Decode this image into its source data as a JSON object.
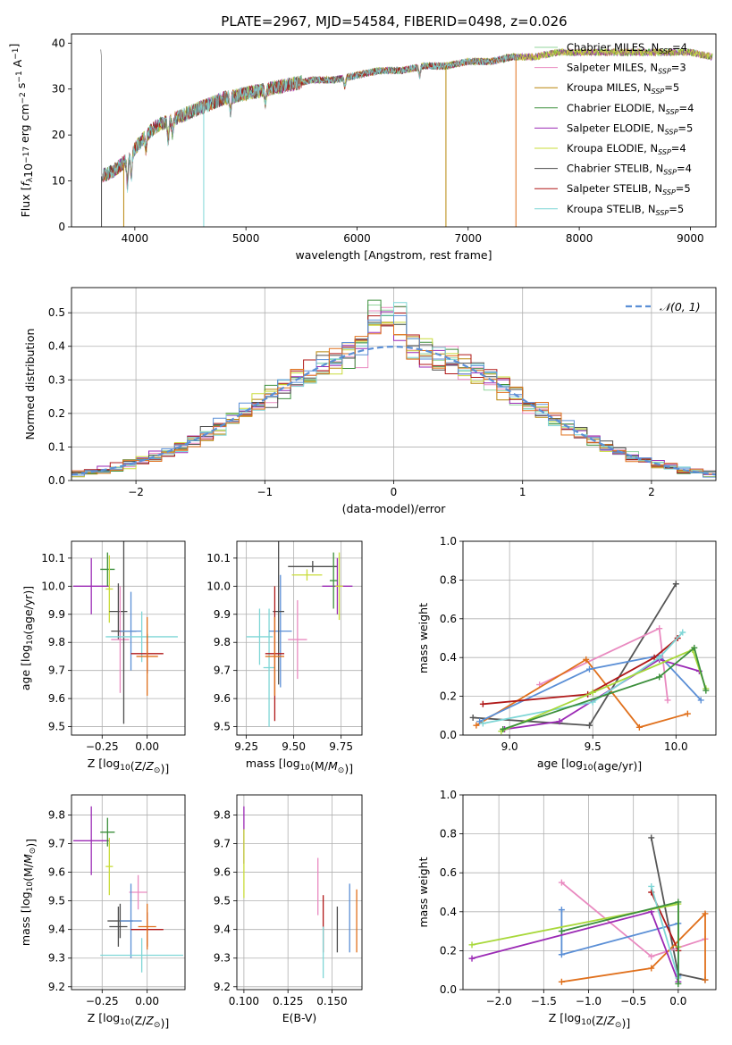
{
  "figure": {
    "title": "PLATE=2967, MJD=54584, FIBERID=0498, z=0.026"
  },
  "colors": {
    "Chabrier MILES": "#93d59d",
    "Salpeter MILES": "#e98ac0",
    "Kroupa MILES": "#b8860b",
    "Chabrier ELODIE": "#3c8f3c",
    "Salpeter ELODIE": "#9b2ab5",
    "Kroupa ELODIE": "#c9dc3a",
    "Chabrier STELIB": "#4d4d4d",
    "Salpeter STELIB": "#b01818",
    "Kroupa STELIB": "#7fd6d6",
    "dash": "#5b8fd6",
    "orange": "#e0701c",
    "blue": "#5b8fd6",
    "violet": "#9b2ab5",
    "lime": "#a8d83a",
    "yellow": "#d8e84a",
    "pink": "#e98ac0",
    "gray": "#555555",
    "grid": "#b0b0b0"
  },
  "chart_data": [
    {
      "id": "spectrum",
      "type": "line",
      "xlabel": "wavelength [Angstrom, rest frame]",
      "ylabel": "Flux [f_λ10^−17 erg cm^−2 s^−1 A^−1]",
      "xlim": [
        3430,
        9230
      ],
      "ylim": [
        0,
        42
      ],
      "xticks": [
        4000,
        5000,
        6000,
        7000,
        8000,
        9000
      ],
      "yticks": [
        0,
        10,
        20,
        30,
        40
      ],
      "grid": false,
      "legend_placement": "right",
      "continuum": {
        "x": [
          3700,
          3800,
          3900,
          4000,
          4100,
          4200,
          4400,
          4600,
          4800,
          5000,
          5200,
          5400,
          5600,
          5800,
          6000,
          6200,
          6400,
          6600,
          6800,
          7000,
          7200,
          7400,
          7600,
          7800,
          8000,
          8200,
          8400,
          8600,
          8800,
          9000,
          9200
        ],
        "y": [
          11,
          12,
          14,
          17,
          20,
          22,
          24,
          26,
          28,
          29,
          30,
          31,
          32,
          32,
          33,
          34,
          34,
          35,
          35,
          36,
          36,
          37,
          37,
          38,
          38,
          38,
          38,
          38,
          38,
          38,
          37
        ]
      },
      "series": [
        {
          "name": "Chabrier MILES, N_SSP=4",
          "label": "Chabrier MILES, N",
          "n": "4",
          "color_key": "Chabrier MILES"
        },
        {
          "name": "Salpeter MILES, N_SSP=3",
          "label": "Salpeter MILES, N",
          "n": "3",
          "color_key": "Salpeter MILES"
        },
        {
          "name": "Kroupa MILES, N_SSP=5",
          "label": "Kroupa MILES, N",
          "n": "5",
          "color_key": "Kroupa MILES"
        },
        {
          "name": "Chabrier ELODIE, N_SSP=4",
          "label": "Chabrier ELODIE, N",
          "n": "4",
          "color_key": "Chabrier ELODIE"
        },
        {
          "name": "Salpeter ELODIE, N_SSP=5",
          "label": "Salpeter ELODIE, N",
          "n": "5",
          "color_key": "Salpeter ELODIE"
        },
        {
          "name": "Kroupa ELODIE, N_SSP=4",
          "label": "Kroupa ELODIE, N",
          "n": "4",
          "color_key": "Kroupa ELODIE"
        },
        {
          "name": "Chabrier STELIB, N_SSP=4",
          "label": "Chabrier STELIB, N",
          "n": "4",
          "color_key": "Chabrier STELIB"
        },
        {
          "name": "Salpeter STELIB, N_SSP=5",
          "label": "Salpeter STELIB, N",
          "n": "5",
          "color_key": "Salpeter STELIB"
        },
        {
          "name": "Kroupa STELIB, N_SSP=5",
          "label": "Kroupa STELIB, N",
          "n": "5",
          "color_key": "Kroupa STELIB"
        }
      ],
      "drops": [
        {
          "x": 3700,
          "color_key": "Chabrier STELIB"
        },
        {
          "x": 3900,
          "color_key": "Kroupa MILES"
        },
        {
          "x": 4620,
          "color_key": "Kroupa STELIB"
        },
        {
          "x": 6800,
          "color_key": "Kroupa MILES"
        },
        {
          "x": 7430,
          "color_key": "orange"
        }
      ]
    },
    {
      "id": "hist",
      "type": "bar",
      "xlabel": "(data-model)/error",
      "ylabel": "Normed distribution",
      "xlim": [
        -2.5,
        2.5
      ],
      "ylim": [
        0,
        0.575
      ],
      "xticks": [
        -2,
        -1,
        0,
        1,
        2
      ],
      "yticks": [
        0.0,
        0.1,
        0.2,
        0.3,
        0.4,
        0.5
      ],
      "grid": true,
      "legend_placement": "top-right",
      "reference": {
        "name": "𝒩(0, 1)",
        "mean": 0,
        "sigma": 1
      },
      "bin_edges_start": -2.5,
      "bin_width": 0.1
    },
    {
      "id": "age_Z",
      "type": "scatter",
      "xlabel": "Z [log10(Z/Z⊙)]",
      "ylabel": "age [log10(age/yr)]",
      "xlim": [
        -0.42,
        0.21
      ],
      "ylim": [
        9.47,
        10.16
      ],
      "xticks": [
        -0.25,
        0.0
      ],
      "yticks": [
        9.5,
        9.6,
        9.7,
        9.8,
        9.9,
        10.0,
        10.1
      ],
      "grid": true,
      "points": [
        {
          "x": -0.31,
          "y": 10.0,
          "xerr": 0.1,
          "yerr": 0.1,
          "color_key": "Salpeter ELODIE"
        },
        {
          "x": -0.22,
          "y": 10.06,
          "xerr": 0.04,
          "yerr": 0.06,
          "color_key": "Chabrier ELODIE"
        },
        {
          "x": -0.21,
          "y": 9.99,
          "xerr": 0.02,
          "yerr": 0.12,
          "color_key": "Kroupa ELODIE"
        },
        {
          "x": -0.16,
          "y": 9.91,
          "xerr": 0.05,
          "yerr": 0.1,
          "color_key": "Chabrier STELIB"
        },
        {
          "x": -0.15,
          "y": 9.81,
          "xerr": 0.05,
          "yerr": 0.19,
          "color_key": "Salpeter MILES"
        },
        {
          "x": -0.13,
          "y": 9.84,
          "xerr": 0.07,
          "yerr": 0.33,
          "color_key": "Chabrier STELIB"
        },
        {
          "x": -0.09,
          "y": 9.84,
          "xerr": 0.06,
          "yerr": 0.14,
          "color_key": "blue"
        },
        {
          "x": -0.03,
          "y": 9.82,
          "xerr": 0.2,
          "yerr": 0.09,
          "color_key": "Kroupa STELIB"
        },
        {
          "x": 0.0,
          "y": 9.76,
          "xerr": 0.09,
          "yerr": 0.07,
          "color_key": "Salpeter STELIB"
        },
        {
          "x": 0.0,
          "y": 9.75,
          "xerr": 0.06,
          "yerr": 0.14,
          "color_key": "orange"
        }
      ]
    },
    {
      "id": "age_mass",
      "type": "scatter",
      "xlabel": "mass [log10(M/M⊙)]",
      "ylabel": "",
      "xlim": [
        9.2,
        9.86
      ],
      "ylim": [
        9.47,
        10.16
      ],
      "xticks": [
        9.25,
        9.5,
        9.75
      ],
      "yticks": [
        9.5,
        9.6,
        9.7,
        9.8,
        9.9,
        10.0,
        10.1
      ],
      "grid": true,
      "points": [
        {
          "x": 9.32,
          "y": 9.82,
          "xerr": 0.07,
          "yerr": 0.1,
          "color_key": "Kroupa STELIB"
        },
        {
          "x": 9.37,
          "y": 9.71,
          "xerr": 0.03,
          "yerr": 0.21,
          "color_key": "Kroupa STELIB"
        },
        {
          "x": 9.43,
          "y": 9.84,
          "xerr": 0.06,
          "yerr": 0.2,
          "color_key": "blue"
        },
        {
          "x": 9.42,
          "y": 9.91,
          "xerr": 0.03,
          "yerr": 0.26,
          "color_key": "Chabrier STELIB"
        },
        {
          "x": 9.4,
          "y": 9.76,
          "xerr": 0.05,
          "yerr": 0.24,
          "color_key": "Salpeter STELIB"
        },
        {
          "x": 9.4,
          "y": 9.75,
          "xerr": 0.05,
          "yerr": 0.14,
          "color_key": "orange"
        },
        {
          "x": 9.52,
          "y": 9.81,
          "xerr": 0.05,
          "yerr": 0.14,
          "color_key": "Salpeter MILES"
        },
        {
          "x": 9.6,
          "y": 10.07,
          "xerr": 0.13,
          "yerr": 0.02,
          "color_key": "Chabrier STELIB"
        },
        {
          "x": 9.57,
          "y": 10.04,
          "xerr": 0.08,
          "yerr": 0.02,
          "color_key": "Kroupa ELODIE"
        },
        {
          "x": 9.73,
          "y": 10.0,
          "xerr": 0.08,
          "yerr": 0.1,
          "color_key": "Salpeter ELODIE"
        },
        {
          "x": 9.71,
          "y": 10.02,
          "xerr": 0.02,
          "yerr": 0.1,
          "color_key": "Chabrier ELODIE"
        },
        {
          "x": 9.74,
          "y": 10.0,
          "xerr": 0.02,
          "yerr": 0.12,
          "color_key": "Kroupa ELODIE"
        }
      ]
    },
    {
      "id": "weight_age",
      "type": "line",
      "xlabel": "age [log10(age/yr)]",
      "ylabel": "mass weight",
      "xlim": [
        8.72,
        10.24
      ],
      "ylim": [
        0,
        1.0
      ],
      "xticks": [
        9.0,
        9.5,
        10.0
      ],
      "yticks": [
        0.0,
        0.2,
        0.4,
        0.6,
        0.8,
        1.0
      ],
      "grid": true,
      "series": [
        {
          "color_key": "gray",
          "x": [
            8.78,
            9.48,
            10.0
          ],
          "y": [
            0.09,
            0.05,
            0.78
          ]
        },
        {
          "color_key": "pink",
          "x": [
            9.18,
            9.9,
            9.95
          ],
          "y": [
            0.26,
            0.55,
            0.18
          ]
        },
        {
          "color_key": "orange",
          "x": [
            8.8,
            9.46,
            9.78,
            10.07
          ],
          "y": [
            0.05,
            0.39,
            0.04,
            0.11
          ]
        },
        {
          "color_key": "blue",
          "x": [
            8.82,
            9.48,
            9.9,
            10.15
          ],
          "y": [
            0.07,
            0.34,
            0.41,
            0.18
          ]
        },
        {
          "color_key": "Salpeter STELIB",
          "x": [
            8.84,
            9.47,
            9.87,
            10.01
          ],
          "y": [
            0.16,
            0.21,
            0.4,
            0.5
          ]
        },
        {
          "color_key": "violet",
          "x": [
            8.97,
            9.3,
            9.9,
            10.14
          ],
          "y": [
            0.03,
            0.07,
            0.39,
            0.33
          ]
        },
        {
          "color_key": "Kroupa STELIB",
          "x": [
            8.84,
            9.5,
            9.9,
            10.04
          ],
          "y": [
            0.06,
            0.17,
            0.4,
            0.53
          ]
        },
        {
          "color_key": "lime",
          "x": [
            8.95,
            9.5,
            10.1,
            10.18
          ],
          "y": [
            0.02,
            0.22,
            0.44,
            0.24
          ]
        },
        {
          "color_key": "Chabrier ELODIE",
          "x": [
            8.96,
            9.9,
            10.11,
            10.18
          ],
          "y": [
            0.03,
            0.3,
            0.45,
            0.23
          ]
        }
      ]
    },
    {
      "id": "mass_Z",
      "type": "scatter",
      "xlabel": "Z [log10(Z/Z⊙)]",
      "ylabel": "mass [log10(M/M⊙)]",
      "xlim": [
        -0.42,
        0.21
      ],
      "ylim": [
        9.19,
        9.87
      ],
      "xticks": [
        -0.25,
        0.0
      ],
      "yticks": [
        9.2,
        9.3,
        9.4,
        9.5,
        9.6,
        9.7,
        9.8
      ],
      "grid": true,
      "points": [
        {
          "x": -0.31,
          "y": 9.71,
          "xerr": 0.1,
          "yerr": 0.12,
          "color_key": "Salpeter ELODIE"
        },
        {
          "x": -0.22,
          "y": 9.74,
          "xerr": 0.04,
          "yerr": 0.05,
          "color_key": "Chabrier ELODIE"
        },
        {
          "x": -0.21,
          "y": 9.62,
          "xerr": 0.02,
          "yerr": 0.1,
          "color_key": "Kroupa ELODIE"
        },
        {
          "x": -0.16,
          "y": 9.41,
          "xerr": 0.05,
          "yerr": 0.07,
          "color_key": "Chabrier STELIB"
        },
        {
          "x": -0.15,
          "y": 9.43,
          "xerr": 0.07,
          "yerr": 0.06,
          "color_key": "Chabrier STELIB"
        },
        {
          "x": -0.05,
          "y": 9.53,
          "xerr": 0.05,
          "yerr": 0.06,
          "color_key": "Salpeter MILES"
        },
        {
          "x": -0.09,
          "y": 9.43,
          "xerr": 0.06,
          "yerr": 0.13,
          "color_key": "blue"
        },
        {
          "x": -0.03,
          "y": 9.31,
          "xerr": 0.23,
          "yerr": 0.06,
          "color_key": "Kroupa STELIB"
        },
        {
          "x": 0.0,
          "y": 9.4,
          "xerr": 0.09,
          "yerr": 0.06,
          "color_key": "Salpeter STELIB"
        },
        {
          "x": 0.0,
          "y": 9.41,
          "xerr": 0.05,
          "yerr": 0.08,
          "color_key": "orange"
        }
      ]
    },
    {
      "id": "mass_ebv",
      "type": "scatter",
      "xlabel": "E(B-V)",
      "ylabel": "",
      "xlim": [
        0.096,
        0.167
      ],
      "ylim": [
        9.19,
        9.87
      ],
      "xticks": [
        0.1,
        0.125,
        0.15
      ],
      "yticks": [
        9.2,
        9.3,
        9.4,
        9.5,
        9.6,
        9.7,
        9.8
      ],
      "grid": true,
      "points": [
        {
          "x": 0.1,
          "y": 9.73,
          "xerr": 0,
          "yerr": 0.1,
          "color_key": "Salpeter ELODIE"
        },
        {
          "x": 0.1,
          "y": 9.63,
          "xerr": 0,
          "yerr": 0.12,
          "color_key": "Kroupa ELODIE"
        },
        {
          "x": 0.142,
          "y": 9.55,
          "xerr": 0,
          "yerr": 0.1,
          "color_key": "Salpeter MILES"
        },
        {
          "x": 0.145,
          "y": 9.42,
          "xerr": 0,
          "yerr": 0.1,
          "color_key": "Salpeter STELIB"
        },
        {
          "x": 0.145,
          "y": 9.32,
          "xerr": 0,
          "yerr": 0.09,
          "color_key": "Kroupa STELIB"
        },
        {
          "x": 0.153,
          "y": 9.4,
          "xerr": 0,
          "yerr": 0.08,
          "color_key": "Chabrier STELIB"
        },
        {
          "x": 0.16,
          "y": 9.44,
          "xerr": 0,
          "yerr": 0.12,
          "color_key": "blue"
        },
        {
          "x": 0.164,
          "y": 9.43,
          "xerr": 0,
          "yerr": 0.11,
          "color_key": "orange"
        }
      ]
    },
    {
      "id": "weight_Z",
      "type": "line",
      "xlabel": "Z [log10(Z/Z⊙)]",
      "ylabel": "mass weight",
      "xlim": [
        -2.4,
        0.42
      ],
      "ylim": [
        0,
        1.0
      ],
      "xticks": [
        -2.0,
        -1.5,
        -1.0,
        -0.5,
        0.0
      ],
      "yticks": [
        0.0,
        0.2,
        0.4,
        0.6,
        0.8,
        1.0
      ],
      "grid": true,
      "series": [
        {
          "color_key": "gray",
          "x": [
            -0.3,
            0.0,
            0.3
          ],
          "y": [
            0.78,
            0.08,
            0.05
          ]
        },
        {
          "color_key": "pink",
          "x": [
            -1.3,
            -0.3,
            0.3
          ],
          "y": [
            0.55,
            0.17,
            0.26
          ]
        },
        {
          "color_key": "orange",
          "x": [
            -1.3,
            -0.3,
            0.3,
            0.3
          ],
          "y": [
            0.04,
            0.11,
            0.39,
            0.05
          ]
        },
        {
          "color_key": "blue",
          "x": [
            -1.3,
            -1.3,
            0.0,
            0.0
          ],
          "y": [
            0.41,
            0.18,
            0.34,
            0.07
          ]
        },
        {
          "color_key": "violet",
          "x": [
            -2.3,
            -0.3,
            0.0
          ],
          "y": [
            0.16,
            0.4,
            0.04
          ]
        },
        {
          "color_key": "Salpeter STELIB",
          "x": [
            -0.3,
            0.0
          ],
          "y": [
            0.5,
            0.2
          ]
        },
        {
          "color_key": "Kroupa STELIB",
          "x": [
            -0.3,
            0.0
          ],
          "y": [
            0.53,
            0.06
          ]
        },
        {
          "color_key": "lime",
          "x": [
            -2.3,
            0.0,
            0.0
          ],
          "y": [
            0.23,
            0.44,
            0.22
          ]
        },
        {
          "color_key": "Chabrier ELODIE",
          "x": [
            -1.3,
            0.0,
            0.0
          ],
          "y": [
            0.3,
            0.45,
            0.03
          ]
        }
      ]
    }
  ]
}
